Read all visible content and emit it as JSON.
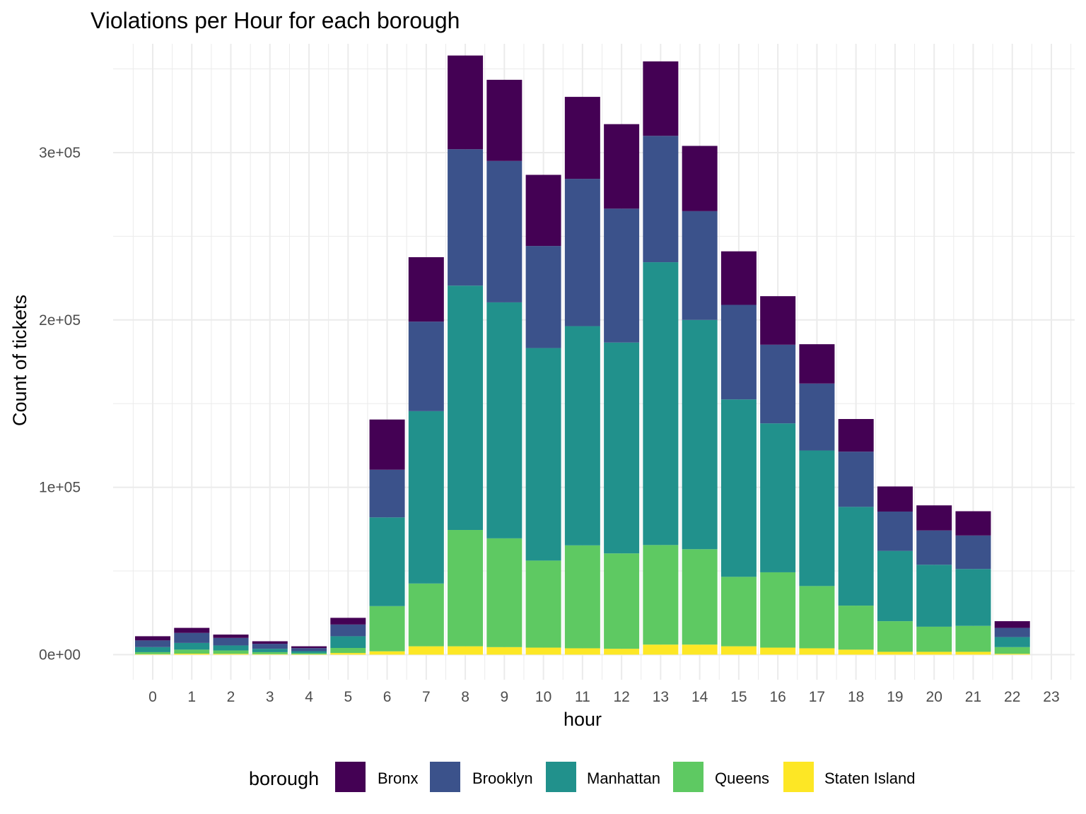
{
  "chart_data": {
    "type": "bar",
    "stacked": true,
    "title": "Violations per Hour for each borough",
    "xlabel": "hour",
    "ylabel": "Count of tickets",
    "categories": [
      "0",
      "1",
      "2",
      "3",
      "4",
      "5",
      "6",
      "7",
      "8",
      "9",
      "10",
      "11",
      "12",
      "13",
      "14",
      "15",
      "16",
      "17",
      "18",
      "19",
      "20",
      "21",
      "22",
      "23"
    ],
    "ylim": [
      -15000,
      365000
    ],
    "yticks": [
      {
        "value": 0,
        "label": "0e+00"
      },
      {
        "value": 100000,
        "label": "1e+05"
      },
      {
        "value": 200000,
        "label": "2e+05"
      },
      {
        "value": 300000,
        "label": "3e+05"
      }
    ],
    "grid": true,
    "legend": {
      "title": "borough",
      "position": "bottom"
    },
    "series": [
      {
        "name": "Staten Island",
        "color": "#FDE725",
        "values": [
          300,
          600,
          500,
          300,
          200,
          1000,
          2000,
          5000,
          5000,
          4500,
          4200,
          3800,
          3500,
          6000,
          6000,
          5000,
          4200,
          3800,
          3000,
          1700,
          1700,
          1700,
          500,
          0
        ]
      },
      {
        "name": "Queens",
        "color": "#5EC962",
        "values": [
          1200,
          2400,
          2000,
          1200,
          700,
          3000,
          27000,
          37500,
          69500,
          65000,
          52000,
          61500,
          57000,
          59500,
          57000,
          41500,
          45000,
          37200,
          26300,
          18300,
          15000,
          15500,
          4000,
          0
        ]
      },
      {
        "name": "Manhattan",
        "color": "#21918C",
        "values": [
          3000,
          4000,
          3000,
          2000,
          1200,
          7000,
          53000,
          103000,
          146000,
          141000,
          127000,
          131000,
          126000,
          169000,
          137000,
          106000,
          89000,
          81000,
          59000,
          42000,
          37000,
          34000,
          6000,
          0
        ]
      },
      {
        "name": "Brooklyn",
        "color": "#3B528B",
        "values": [
          4000,
          6000,
          4500,
          3000,
          1800,
          7000,
          28500,
          53500,
          81500,
          84500,
          61000,
          88000,
          80000,
          75500,
          65000,
          56500,
          47000,
          40000,
          33000,
          23500,
          20500,
          20000,
          5500,
          0
        ]
      },
      {
        "name": "Bronx",
        "color": "#440154",
        "values": [
          2500,
          3000,
          2000,
          1500,
          1100,
          4000,
          30000,
          38500,
          56000,
          48500,
          42500,
          49000,
          50500,
          44500,
          39000,
          32000,
          29000,
          23500,
          19500,
          15000,
          15000,
          14500,
          4000,
          0
        ]
      }
    ]
  }
}
